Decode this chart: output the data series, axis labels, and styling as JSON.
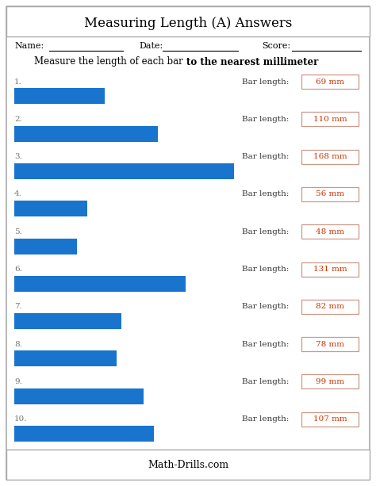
{
  "title": "Measuring Length (A) Answers",
  "instruction_plain": "Measure the length of each bar ",
  "instruction_bold": "to the nearest millimeter",
  "instruction_end": ".",
  "footer": "Math-Drills.com",
  "name_label": "Name:",
  "date_label": "Date:",
  "score_label": "Score:",
  "bar_lengths_mm": [
    69,
    110,
    168,
    56,
    48,
    131,
    82,
    78,
    99,
    107
  ],
  "max_mm": 168,
  "bar_color": "#1874CD",
  "answer_color": "#CC3300",
  "answer_box_edge": "#CC9988",
  "background_color": "#FFFFFF",
  "figsize": [
    4.74,
    6.13
  ],
  "dpi": 100
}
